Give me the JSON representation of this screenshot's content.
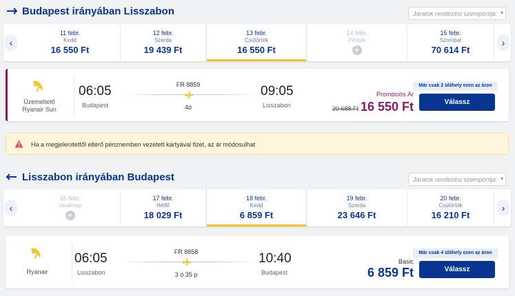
{
  "outbound": {
    "title": "Budapest irányában Lisszabon",
    "sort_placeholder": "Járatok rendezési szempontja:",
    "dates": [
      {
        "date": "11 febr.",
        "day": "Kedd",
        "price": "16 550 Ft",
        "state": "normal"
      },
      {
        "date": "12 febr.",
        "day": "Szerda",
        "price": "19 439 Ft",
        "state": "normal"
      },
      {
        "date": "13 febr.",
        "day": "Csütörtök",
        "price": "16 550 Ft",
        "state": "selected"
      },
      {
        "date": "14 febr.",
        "day": "Péntek",
        "price": "",
        "state": "disabled"
      },
      {
        "date": "15 febr.",
        "day": "Szombat",
        "price": "70 614 Ft",
        "state": "normal"
      }
    ],
    "flight": {
      "operator_label": "Üzemeltető",
      "operator_name": "Ryanair Sun",
      "dep_time": "06:05",
      "dep_city": "Budapest",
      "flight_no": "FR 8859",
      "duration": "4ó",
      "arr_time": "09:05",
      "arr_city": "Lisszabon",
      "fare_label": "Promóciós Ár",
      "old_price": "20 688 Ft",
      "price": "16 550 Ft",
      "seats_left": "Már csak 2 ülőhely ezen az áron",
      "select_label": "Válassz"
    }
  },
  "notice": {
    "text": "Ha a megjelenítettől eltérő pénznemben vezetett kártyával fizet, az ár módosulhat"
  },
  "inbound": {
    "title": "Lisszabon irányában Budapest",
    "sort_placeholder": "Járatok rendezési szempontja:",
    "dates": [
      {
        "date": "16 febr.",
        "day": "Vasárnap",
        "price": "",
        "state": "disabled"
      },
      {
        "date": "17 febr.",
        "day": "Hétfő",
        "price": "18 029 Ft",
        "state": "normal"
      },
      {
        "date": "18 febr.",
        "day": "Kedd",
        "price": "6 859 Ft",
        "state": "selected"
      },
      {
        "date": "19 febr.",
        "day": "Szerda",
        "price": "23 646 Ft",
        "state": "normal"
      },
      {
        "date": "20 febr.",
        "day": "Csütörtök",
        "price": "16 210 Ft",
        "state": "normal"
      }
    ],
    "flight": {
      "operator_name": "Ryanair",
      "dep_time": "06:05",
      "dep_city": "Lisszabon",
      "flight_no": "FR 8858",
      "duration": "3 ó 35 p",
      "arr_time": "10:40",
      "arr_city": "Budapest",
      "fare_label": "Basic",
      "price": "6 859 Ft",
      "seats_left": "Már csak 4 ülőhely ezen az áron",
      "select_label": "Válassz"
    }
  },
  "colors": {
    "brand_blue": "#073590",
    "promo_purple": "#8a1a64",
    "selected_underline": "#f2c631"
  },
  "icons": [
    "plane-icon",
    "chevron-left-icon",
    "chevron-right-icon",
    "no-flight-icon",
    "ryanair-harp-logo",
    "warning-icon",
    "chevron-down-icon"
  ]
}
